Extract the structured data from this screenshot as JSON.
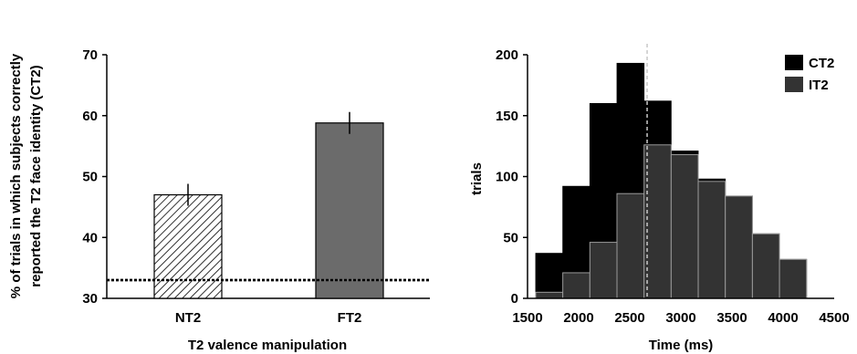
{
  "chart_data": [
    {
      "type": "bar",
      "ylabel_line1": "% of trials in which subjects correctly",
      "ylabel_line2": "reported the T2 face  identity (CT2)",
      "xlabel": "T2 valence manipulation",
      "categories": [
        "NT2",
        "FT2"
      ],
      "values": [
        47,
        58.8
      ],
      "errors": [
        1.8,
        1.8
      ],
      "ylim": [
        30,
        70
      ],
      "yticks": [
        30,
        40,
        50,
        60,
        70
      ],
      "reference_line": 33,
      "colors": {
        "NT2": "hatched #ffffff/#000000",
        "FT2": "#6b6b6b"
      }
    },
    {
      "type": "bar",
      "ylabel": "trials",
      "xlabel": "Time (ms)",
      "xlim": [
        1500,
        4500
      ],
      "ylim": [
        0,
        200
      ],
      "xticks": [
        1500,
        2000,
        2500,
        3000,
        3500,
        4000,
        4500
      ],
      "yticks": [
        0,
        50,
        100,
        150,
        200
      ],
      "reference_line_x": 2670,
      "bin_width": 265,
      "bin_starts": [
        1580,
        1845,
        2110,
        2375,
        2640,
        2905,
        3170,
        3435,
        3700,
        3965
      ],
      "series": [
        {
          "name": "CT2",
          "color": "#000000",
          "values": [
            37,
            92,
            160,
            193,
            162,
            121,
            98,
            84,
            53,
            32
          ]
        },
        {
          "name": "IT2",
          "color": "#333333",
          "values": [
            5,
            21,
            46,
            86,
            126,
            118,
            96,
            84,
            53,
            32
          ]
        }
      ],
      "legend_position": "top-right"
    }
  ]
}
